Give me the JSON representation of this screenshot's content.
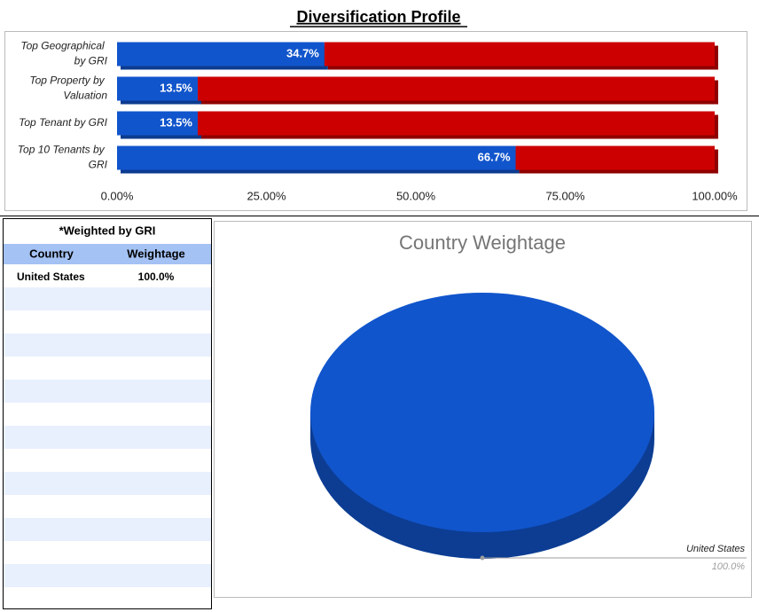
{
  "title": "Diversification Profile",
  "chart_data": [
    {
      "type": "bar",
      "orientation": "horizontal",
      "stacked": true,
      "categories": [
        "Top Geographical by GRI",
        "Top Property by Valuation",
        "Top Tenant by GRI",
        "Top 10 Tenants by GRI"
      ],
      "series": [
        {
          "color": "#1155cc",
          "values": [
            34.7,
            13.5,
            13.5,
            66.7
          ],
          "value_labels": [
            "34.7%",
            "13.5%",
            "13.5%",
            "66.7%"
          ]
        },
        {
          "color": "#cc0000",
          "values": [
            65.3,
            86.5,
            86.5,
            33.3
          ]
        }
      ],
      "xlim": [
        0,
        100
      ],
      "xticks": [
        {
          "value": 0,
          "label": "0.00%"
        },
        {
          "value": 25,
          "label": "25.00%"
        },
        {
          "value": 50,
          "label": "50.00%"
        },
        {
          "value": 75,
          "label": "75.00%"
        },
        {
          "value": 100,
          "label": "100.00%"
        }
      ]
    },
    {
      "type": "pie",
      "title": "Country Weightage",
      "categories": [
        "United States"
      ],
      "values": [
        100
      ],
      "value_labels": [
        "100.0%"
      ],
      "colors": [
        "#1155cc"
      ]
    }
  ],
  "table": {
    "title": "*Weighted by GRI",
    "header": [
      "Country",
      "Weightage"
    ],
    "rows": [
      [
        "United States",
        "100.0%"
      ]
    ]
  }
}
